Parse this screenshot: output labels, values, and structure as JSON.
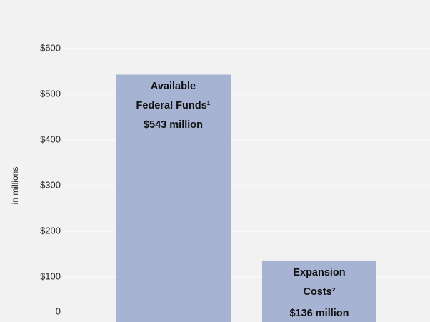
{
  "chart_data": {
    "type": "bar",
    "y_label": "in millions",
    "categories": [
      "Available Federal Funds¹",
      "Expansion Costs²"
    ],
    "values": [
      543,
      136
    ],
    "value_labels": [
      "$543 million",
      "$136 million"
    ],
    "color": "#a7b3d3",
    "ylim": [
      0,
      600
    ],
    "yticks": [
      0,
      {
        "value": 100,
        "label": "$100"
      },
      {
        "value": 200,
        "label": "$200"
      },
      {
        "value": 300,
        "label": "$300"
      },
      {
        "value": 400,
        "label": "$400"
      },
      {
        "value": 500,
        "label": "$500"
      },
      {
        "value": 600,
        "label": "$600"
      }
    ],
    "grid": true
  }
}
